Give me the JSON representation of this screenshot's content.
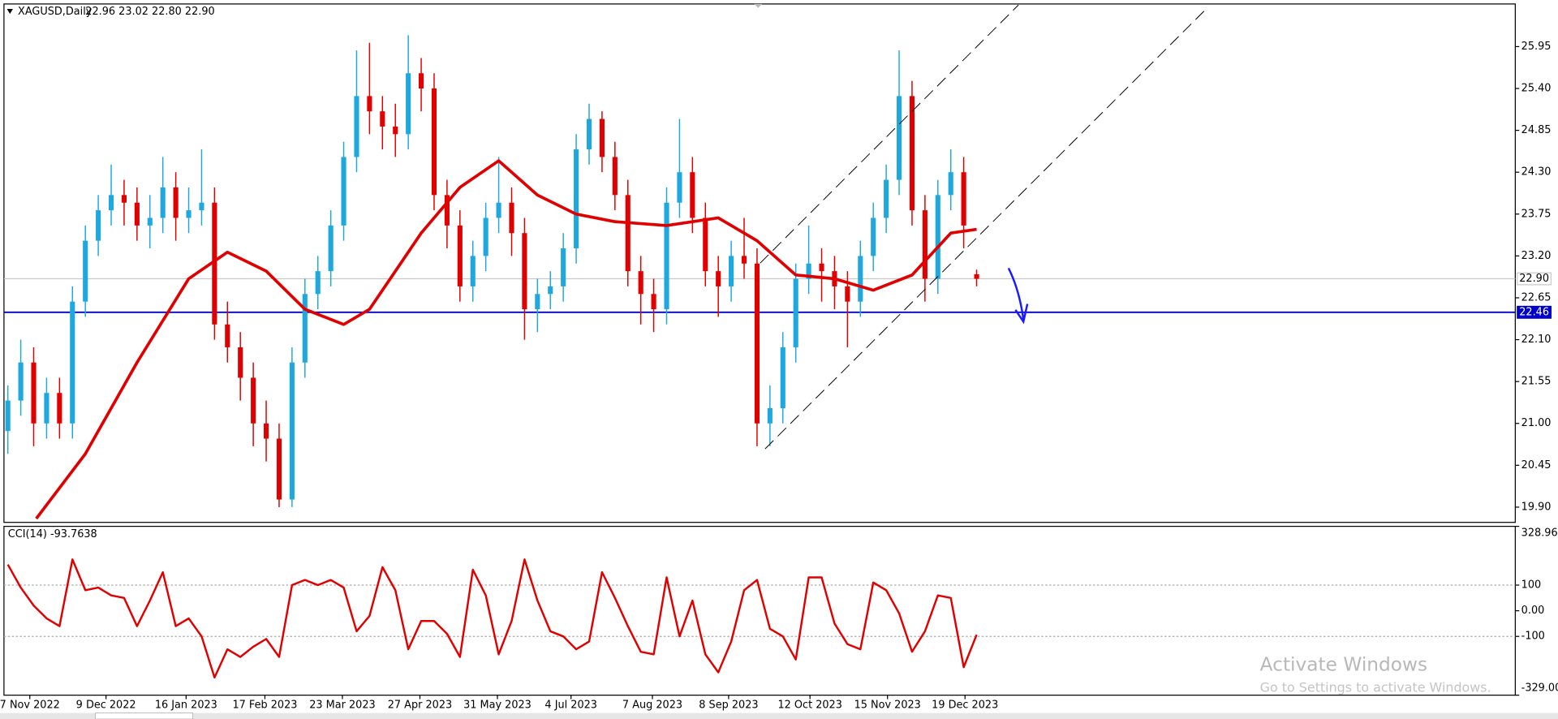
{
  "chart_data": [
    {
      "type": "candlestick",
      "title": "XAGUSD,Daily",
      "subtitle": "22.96 23.02 22.80 22.90",
      "up_color": "#1fa8e0",
      "down_color": "#e00000",
      "open": [
        20.9,
        21.3,
        21.8,
        21.0,
        21.4,
        21.0,
        22.6,
        23.4,
        23.8,
        24.0,
        23.9,
        23.6,
        23.7,
        24.1,
        23.7,
        23.8,
        23.9,
        22.3,
        22.0,
        21.6,
        21.0,
        20.8,
        20.0,
        21.8,
        22.7,
        23.0,
        23.6,
        24.5,
        25.3,
        25.1,
        24.9,
        24.8,
        25.6,
        25.4,
        24.0,
        23.6,
        22.8,
        23.2,
        23.7,
        23.9,
        23.5,
        22.5,
        22.7,
        22.8,
        23.3,
        24.6,
        25.0,
        24.5,
        24.0,
        23.0,
        22.7,
        22.5,
        23.9,
        24.3,
        23.7,
        23.0,
        22.8,
        23.2,
        23.1,
        21.0,
        21.2,
        22.0,
        22.9,
        23.1,
        23.0,
        22.8,
        22.6,
        23.2,
        23.7,
        24.2,
        25.3,
        23.8,
        22.9,
        24.0,
        24.3,
        22.96
      ],
      "high": [
        21.5,
        22.1,
        22.0,
        21.6,
        21.6,
        22.8,
        23.6,
        24.0,
        24.4,
        24.2,
        24.1,
        24.0,
        24.5,
        24.3,
        24.1,
        24.6,
        24.1,
        22.6,
        22.2,
        21.8,
        21.3,
        21.0,
        22.0,
        22.9,
        23.2,
        23.8,
        24.7,
        25.9,
        26.0,
        25.3,
        25.2,
        26.1,
        25.8,
        25.6,
        24.2,
        23.8,
        23.4,
        23.9,
        24.5,
        24.1,
        23.7,
        22.9,
        23.0,
        23.5,
        24.8,
        25.2,
        25.1,
        24.7,
        24.2,
        23.2,
        22.9,
        24.1,
        25.0,
        24.5,
        23.9,
        23.2,
        23.4,
        23.7,
        23.3,
        21.5,
        22.2,
        23.1,
        23.6,
        23.3,
        23.2,
        23.0,
        23.4,
        23.9,
        24.4,
        25.9,
        25.5,
        24.0,
        24.2,
        24.6,
        24.5,
        23.02
      ],
      "low": [
        20.6,
        21.1,
        20.7,
        20.8,
        20.8,
        20.8,
        22.4,
        23.2,
        23.6,
        23.6,
        23.4,
        23.3,
        23.5,
        23.4,
        23.5,
        23.6,
        22.1,
        21.8,
        21.3,
        20.7,
        20.5,
        19.9,
        19.9,
        21.6,
        22.5,
        22.8,
        23.4,
        24.3,
        24.8,
        24.6,
        24.5,
        24.6,
        25.1,
        23.8,
        23.3,
        22.6,
        22.6,
        23.0,
        23.5,
        23.2,
        22.1,
        22.2,
        22.5,
        22.6,
        23.1,
        24.4,
        24.3,
        23.8,
        22.8,
        22.3,
        22.2,
        22.3,
        23.7,
        23.5,
        22.8,
        22.4,
        22.6,
        22.9,
        20.7,
        20.7,
        21.0,
        21.8,
        22.7,
        22.6,
        22.5,
        22.0,
        22.4,
        23.0,
        23.5,
        24.0,
        23.6,
        22.6,
        22.7,
        23.8,
        23.3,
        22.8
      ],
      "close": [
        21.3,
        21.8,
        21.0,
        21.4,
        21.0,
        22.6,
        23.4,
        23.8,
        24.0,
        23.9,
        23.6,
        23.7,
        24.1,
        23.7,
        23.8,
        23.9,
        22.3,
        22.0,
        21.6,
        21.0,
        20.8,
        20.0,
        21.8,
        22.7,
        23.0,
        23.6,
        24.5,
        25.3,
        25.1,
        24.9,
        24.8,
        25.6,
        25.4,
        24.0,
        23.6,
        22.8,
        23.2,
        23.7,
        23.9,
        23.5,
        22.5,
        22.7,
        22.8,
        23.3,
        24.6,
        25.0,
        24.5,
        24.0,
        23.0,
        22.7,
        22.5,
        23.9,
        24.3,
        23.7,
        23.0,
        22.8,
        23.2,
        23.1,
        21.0,
        21.2,
        22.0,
        22.9,
        23.1,
        23.0,
        22.8,
        22.6,
        23.2,
        23.7,
        24.2,
        25.3,
        23.8,
        22.9,
        24.0,
        24.3,
        23.6,
        22.9
      ],
      "overlay": {
        "type": "line",
        "color": "#e00000",
        "x": [
          2.2,
          6,
          10,
          14,
          17,
          20,
          23,
          26,
          28,
          32,
          35,
          38,
          41,
          44,
          47,
          51,
          55,
          58,
          61,
          64,
          67,
          70,
          73,
          75
        ],
        "values": [
          19.75,
          20.6,
          21.8,
          22.9,
          23.25,
          23.0,
          22.5,
          22.3,
          22.5,
          23.5,
          24.1,
          24.45,
          24.0,
          23.75,
          23.65,
          23.6,
          23.7,
          23.4,
          22.95,
          22.9,
          22.75,
          22.95,
          23.5,
          23.55
        ]
      },
      "price_lines": [
        {
          "value": 22.9,
          "label": "22.90",
          "color": "#c8c8c8",
          "label_fill": "#ffffff",
          "label_text": "#000000"
        },
        {
          "value": 22.46,
          "label": "22.46",
          "color": "#0000cc",
          "label_fill": "#0000cc",
          "label_text": "#ffffff"
        }
      ],
      "ylim": [
        19.7,
        26.51
      ],
      "yticks": [
        25.95,
        {
          "value": 25.4,
          "label": "25.40"
        },
        24.85,
        {
          "value": 24.3,
          "label": "24.30"
        },
        23.75,
        {
          "value": 23.2,
          "label": "23.20"
        },
        22.65,
        {
          "value": 22.1,
          "label": "22.10"
        },
        21.55,
        {
          "value": 21.0,
          "label": "21.00"
        },
        20.45,
        {
          "value": 19.9,
          "label": "19.90"
        }
      ],
      "xlim": [
        -0.3,
        116.7
      ],
      "xticks": [
        {
          "value": 1.7,
          "label": "7 Nov 2022"
        },
        {
          "value": 7.6,
          "label": "9 Dec 2022"
        },
        {
          "value": 13.8,
          "label": "16 Jan 2023"
        },
        {
          "value": 19.9,
          "label": "17 Feb 2023"
        },
        {
          "value": 25.9,
          "label": "23 Mar 2023"
        },
        {
          "value": 31.9,
          "label": "27 Apr 2023"
        },
        {
          "value": 37.9,
          "label": "31 May 2023"
        },
        {
          "value": 43.6,
          "label": "4 Jul 2023"
        },
        {
          "value": 49.9,
          "label": "7 Aug 2023"
        },
        {
          "value": 55.8,
          "label": "8 Sep 2023"
        },
        {
          "value": 62.1,
          "label": "12 Oct 2023"
        },
        {
          "value": 68.1,
          "label": "15 Nov 2023"
        },
        {
          "value": 74.1,
          "label": "19 Dec 2023"
        }
      ]
    },
    {
      "type": "line",
      "title": "CCI(14) -93.7638",
      "color": "#e00000",
      "values": [
        180,
        90,
        20,
        -30,
        -60,
        200,
        80,
        90,
        60,
        50,
        -60,
        40,
        150,
        -60,
        -30,
        -100,
        -260,
        -150,
        -180,
        -140,
        -110,
        -180,
        100,
        120,
        100,
        120,
        90,
        -80,
        -20,
        170,
        80,
        -150,
        -40,
        -40,
        -90,
        -180,
        160,
        60,
        -170,
        -40,
        200,
        40,
        -80,
        -100,
        -150,
        -120,
        150,
        50,
        -60,
        -160,
        -170,
        130,
        -100,
        40,
        -170,
        -240,
        -120,
        80,
        120,
        -70,
        -100,
        -190,
        130,
        130,
        -50,
        -130,
        -150,
        110,
        80,
        -10,
        -160,
        -80,
        60,
        50,
        -220,
        -93.7638
      ],
      "levels": [
        100,
        -100
      ],
      "ylim": [
        -329.006,
        328.964
      ],
      "yticks": [
        328.964,
        100,
        {
          "value": 0,
          "label": "0.00"
        },
        -100,
        {
          "value": -329.006,
          "label": "-329.006"
        }
      ],
      "xlim": [
        -0.3,
        116.7
      ]
    }
  ],
  "watermark": {
    "title": "Activate Windows",
    "text": "Go to Settings to activate Windows."
  }
}
